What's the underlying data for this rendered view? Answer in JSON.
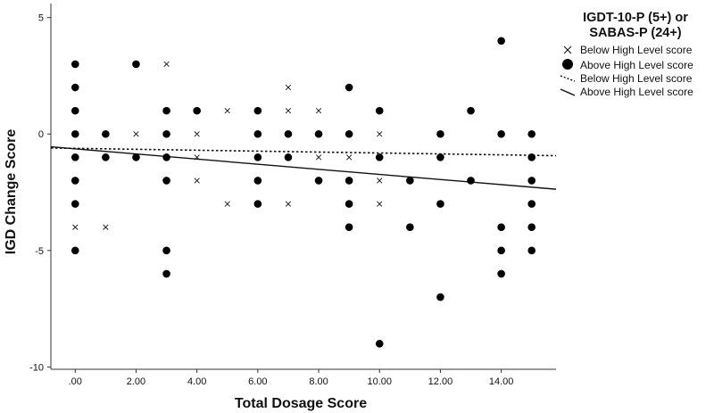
{
  "chart_data": {
    "type": "scatter",
    "xlabel": "Total Dosage Score",
    "ylabel": "IGD Change Score",
    "xlim": [
      -0.8,
      15.8
    ],
    "ylim": [
      -10.1,
      5.6
    ],
    "x_ticks": [
      {
        "value": 0,
        "label": ".00"
      },
      {
        "value": 2,
        "label": "2.00"
      },
      {
        "value": 4,
        "label": "4.00"
      },
      {
        "value": 6,
        "label": "6.00"
      },
      {
        "value": 8,
        "label": "8.00"
      },
      {
        "value": 10,
        "label": "10.00"
      },
      {
        "value": 12,
        "label": "12.00"
      },
      {
        "value": 14,
        "label": "14.00"
      }
    ],
    "y_ticks": [
      {
        "value": 5,
        "label": "5"
      },
      {
        "value": 0,
        "label": "0"
      },
      {
        "value": -5,
        "label": "-5"
      },
      {
        "value": -10,
        "label": "-10"
      }
    ],
    "legend": {
      "title_line1": "IGDT-10-P (5+) or",
      "title_line2": "SABAS-P (24+)",
      "placement": "top-right outside",
      "entries": [
        {
          "label": "Below High Level score",
          "marker": "cross"
        },
        {
          "label": "Above High Level score",
          "marker": "dot"
        },
        {
          "label": "Below High Level score",
          "marker": "dotted-line"
        },
        {
          "label": "Above High Level score",
          "marker": "solid-line"
        }
      ]
    },
    "series": [
      {
        "name": "Below High Level score",
        "marker": "cross",
        "points": [
          [
            0,
            0
          ],
          [
            0,
            -4
          ],
          [
            1,
            -4
          ],
          [
            2,
            0
          ],
          [
            3,
            3
          ],
          [
            4,
            0
          ],
          [
            4,
            -1
          ],
          [
            4,
            -2
          ],
          [
            5,
            1
          ],
          [
            5,
            -3
          ],
          [
            7,
            2
          ],
          [
            7,
            1
          ],
          [
            7,
            -3
          ],
          [
            8,
            1
          ],
          [
            8,
            -1
          ],
          [
            9,
            -1
          ],
          [
            10,
            0
          ],
          [
            10,
            -2
          ],
          [
            10,
            -3
          ]
        ]
      },
      {
        "name": "Above High Level score",
        "marker": "dot",
        "points": [
          [
            0,
            3
          ],
          [
            0,
            2
          ],
          [
            0,
            1
          ],
          [
            0,
            0
          ],
          [
            0,
            -1
          ],
          [
            0,
            -2
          ],
          [
            0,
            -3
          ],
          [
            0,
            -5
          ],
          [
            1,
            0
          ],
          [
            1,
            -1
          ],
          [
            2,
            3
          ],
          [
            2,
            -1
          ],
          [
            3,
            1
          ],
          [
            3,
            0
          ],
          [
            3,
            -1
          ],
          [
            3,
            -2
          ],
          [
            3,
            -5
          ],
          [
            3,
            -6
          ],
          [
            4,
            1
          ],
          [
            6,
            1
          ],
          [
            6,
            0
          ],
          [
            6,
            -1
          ],
          [
            6,
            -2
          ],
          [
            6,
            -3
          ],
          [
            7,
            0
          ],
          [
            7,
            -1
          ],
          [
            8,
            0
          ],
          [
            8,
            -2
          ],
          [
            9,
            2
          ],
          [
            9,
            0
          ],
          [
            9,
            -2
          ],
          [
            9,
            -3
          ],
          [
            9,
            -4
          ],
          [
            10,
            1
          ],
          [
            10,
            -1
          ],
          [
            10,
            -9
          ],
          [
            11,
            -2
          ],
          [
            11,
            -4
          ],
          [
            12,
            0
          ],
          [
            12,
            -1
          ],
          [
            12,
            -3
          ],
          [
            12,
            -7
          ],
          [
            13,
            1
          ],
          [
            13,
            -2
          ],
          [
            14,
            4
          ],
          [
            14,
            0
          ],
          [
            14,
            -4
          ],
          [
            14,
            -5
          ],
          [
            14,
            -6
          ],
          [
            15,
            0
          ],
          [
            15,
            -1
          ],
          [
            15,
            -2
          ],
          [
            15,
            -3
          ],
          [
            15,
            -4
          ],
          [
            15,
            -5
          ]
        ]
      }
    ],
    "fit_lines": [
      {
        "name": "Below High Level score",
        "style": "dotted",
        "x": [
          -0.8,
          15.8
        ],
        "y": [
          -0.6,
          -0.93
        ]
      },
      {
        "name": "Above High Level score",
        "style": "solid",
        "x": [
          -0.8,
          15.8
        ],
        "y": [
          -0.55,
          -2.37
        ]
      }
    ]
  }
}
